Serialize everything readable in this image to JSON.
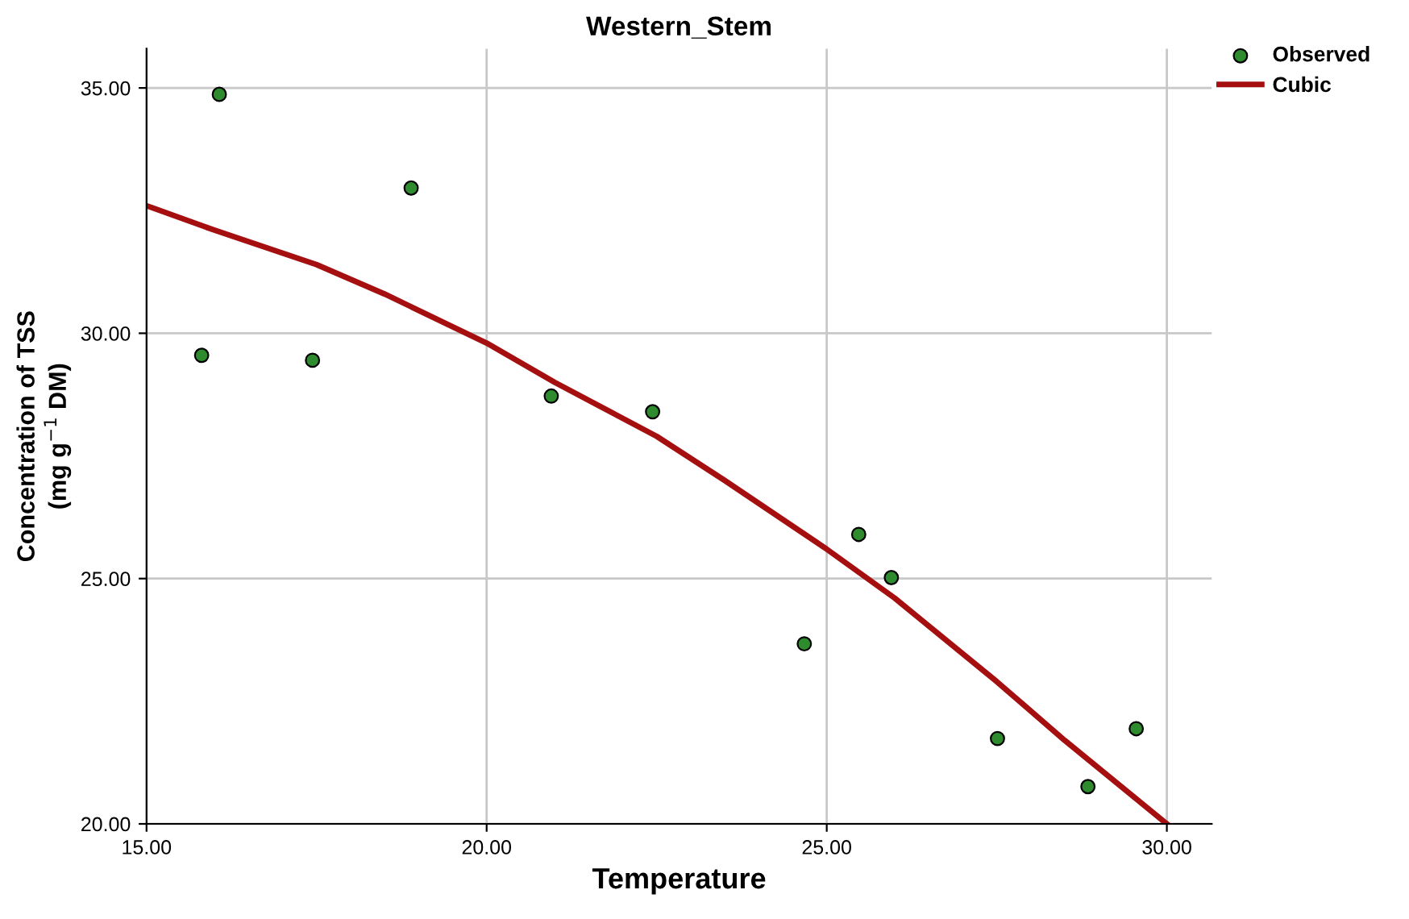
{
  "chart_data": {
    "type": "scatter",
    "title": "Western_Stem",
    "xlabel": "Temperature",
    "ylabel": "Concentration of TSS\n(mg g$^{−1}$ DM)",
    "series": [
      {
        "name": "Observed",
        "color": "#2e8b2e",
        "x": [
          15.81,
          16.07,
          17.44,
          18.89,
          20.95,
          22.44,
          24.67,
          25.47,
          25.95,
          27.51,
          28.84,
          29.55
        ],
        "values": [
          29.55,
          34.87,
          29.45,
          32.96,
          28.72,
          28.4,
          23.67,
          25.9,
          25.02,
          21.74,
          20.76,
          21.94
        ],
        "marker": "circle"
      },
      {
        "name": "Cubic",
        "type": "line",
        "color": "#a50f0f",
        "x": [
          15,
          16,
          17.5,
          18.5,
          20,
          21,
          22.5,
          23.5,
          25,
          26,
          27.5,
          28.5,
          30
        ],
        "values": [
          32.6,
          32.1,
          31.4,
          30.8,
          29.8,
          29.0,
          27.9,
          27.0,
          25.6,
          24.6,
          22.9,
          21.7,
          20.0
        ],
        "marker": "none",
        "line_style": "solid"
      }
    ],
    "xlim": [
      15,
      30.66
    ],
    "ylim": [
      20,
      35.8
    ],
    "xticks": [
      {
        "value": 15,
        "label": "15.00"
      },
      {
        "value": 20,
        "label": "20.00"
      },
      {
        "value": 25,
        "label": "25.00"
      },
      {
        "value": 30,
        "label": "30.00"
      }
    ],
    "yticks": [
      {
        "value": 20,
        "label": "20.00"
      },
      {
        "value": 25,
        "label": "25.00"
      },
      {
        "value": 30,
        "label": "30.00"
      },
      {
        "value": 35,
        "label": "35.00"
      }
    ],
    "grid": true,
    "legend": "top right"
  }
}
